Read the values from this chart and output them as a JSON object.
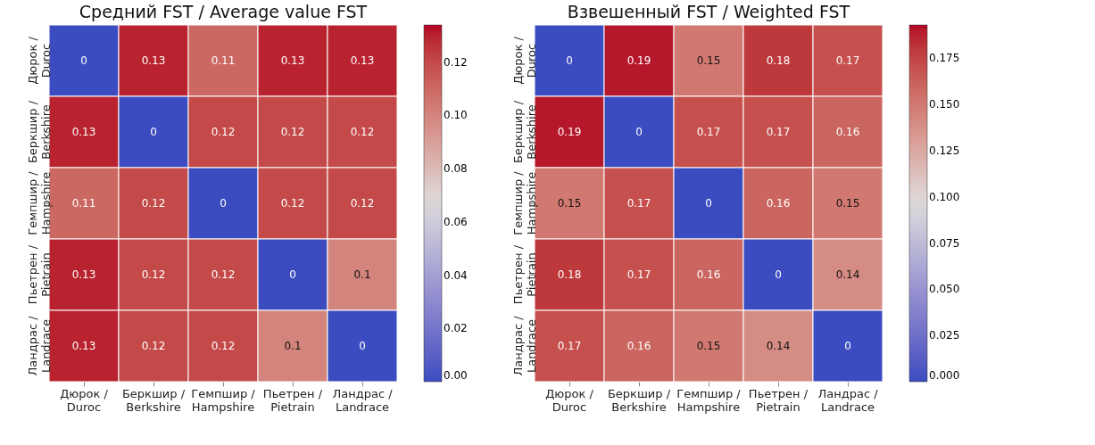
{
  "chart_data": [
    {
      "type": "heatmap",
      "title": "Средний FST / Average value FST",
      "categories": [
        "Дюрок /\nDuroc",
        "Беркшир /\nBerkshire",
        "Гемпшир /\nHampshire",
        "Пьетрен /\nPietrain",
        "Ландрас /\nLandrace"
      ],
      "y_categories": [
        "Дюрок /\nDuroc",
        "Беркшир /\nBerkshire",
        "Гемпшир /\nHampshire",
        "Пьетрен /\nPietrain",
        "Ландрас /\nLandrace"
      ],
      "cells": [
        [
          0,
          0.13,
          0.11,
          0.13,
          0.13
        ],
        [
          0.13,
          0,
          0.12,
          0.12,
          0.12
        ],
        [
          0.11,
          0.12,
          0,
          0.12,
          0.12
        ],
        [
          0.13,
          0.12,
          0.12,
          0,
          0.1
        ],
        [
          0.13,
          0.12,
          0.12,
          0.1,
          0
        ]
      ],
      "data_labels": true,
      "clim": [
        0,
        0.134
      ],
      "cticks": [
        {
          "value": 0,
          "label": "0.00"
        },
        {
          "value": 0.02,
          "label": "0.02"
        },
        {
          "value": 0.04,
          "label": "0.04"
        },
        {
          "value": 0.06,
          "label": "0.06"
        },
        {
          "value": 0.08,
          "label": "0.08"
        },
        {
          "value": 0.1,
          "label": "0.10"
        },
        {
          "value": 0.12,
          "label": "0.12"
        }
      ]
    },
    {
      "type": "heatmap",
      "title": "Взвешенный FST / Weighted FST",
      "categories": [
        "Дюрок /\nDuroc",
        "Беркшир /\nBerkshire",
        "Гемпшир /\nHampshire",
        "Пьетрен /\nPietrain",
        "Ландрас /\nLandrace"
      ],
      "y_categories": [
        "Дюрок /\nDuroc",
        "Беркшир /\nBerkshire",
        "Гемпшир /\nHampshire",
        "Пьетрен /\nPietrain",
        "Ландрас /\nLandrace"
      ],
      "cells": [
        [
          0,
          0.19,
          0.15,
          0.18,
          0.17
        ],
        [
          0.19,
          0,
          0.17,
          0.17,
          0.16
        ],
        [
          0.15,
          0.17,
          0,
          0.16,
          0.15
        ],
        [
          0.18,
          0.17,
          0.16,
          0,
          0.14
        ],
        [
          0.17,
          0.16,
          0.15,
          0.14,
          0
        ]
      ],
      "data_labels": true,
      "clim": [
        0,
        0.193
      ],
      "cticks": [
        {
          "value": 0,
          "label": "0.000"
        },
        {
          "value": 0.025,
          "label": "0.025"
        },
        {
          "value": 0.05,
          "label": "0.050"
        },
        {
          "value": 0.075,
          "label": "0.075"
        },
        {
          "value": 0.1,
          "label": "0.100"
        },
        {
          "value": 0.125,
          "label": "0.125"
        },
        {
          "value": 0.15,
          "label": "0.150"
        },
        {
          "value": 0.175,
          "label": "0.175"
        }
      ]
    }
  ]
}
